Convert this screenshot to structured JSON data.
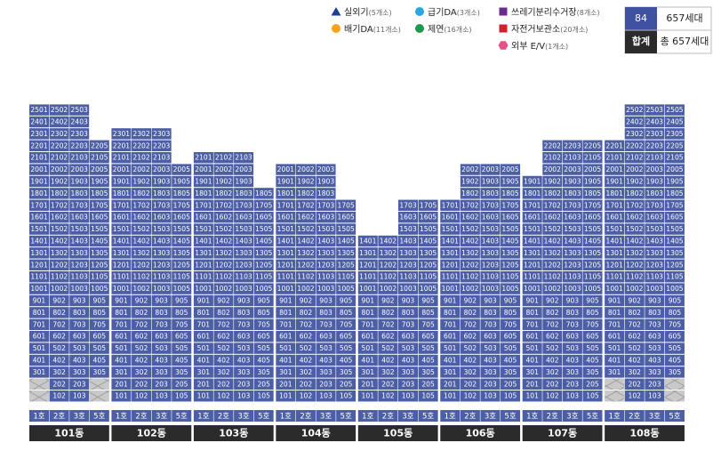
{
  "legend": [
    {
      "name": "실외기",
      "count": "(5개소)",
      "shape": "triangle",
      "color": "#1f3f8f"
    },
    {
      "name": "급기DA",
      "count": "(3개소)",
      "shape": "circle",
      "color": "#29a8e0"
    },
    {
      "name": "쓰레기분리수거장",
      "count": "(8개소)",
      "shape": "square",
      "color": "#6a2c8c"
    },
    {
      "name": "배기DA",
      "count": "(11개소)",
      "shape": "circle",
      "color": "#f5a31a"
    },
    {
      "name": "제연",
      "count": "(16개소)",
      "shape": "circle",
      "color": "#1a9a4a"
    },
    {
      "name": "자전거보관소",
      "count": "(20개소)",
      "shape": "square",
      "color": "#d0202e"
    },
    {
      "name": "외부 E/V",
      "count": "(1개소)",
      "shape": "hexagon",
      "color": "#e8508a"
    }
  ],
  "summary": {
    "rows": [
      [
        "84",
        "657세대"
      ],
      [
        "합계",
        "총 657세대"
      ]
    ]
  },
  "buildings": [
    {
      "name": "101동",
      "ho": [
        "1호",
        "2호",
        "3호",
        "5호"
      ],
      "rows": [
        [
          2501,
          2502,
          2503,
          null
        ],
        [
          2401,
          2402,
          2403,
          null
        ],
        [
          2301,
          2302,
          2303,
          null
        ],
        [
          2201,
          2202,
          2203,
          2205
        ],
        [
          2101,
          2102,
          2103,
          2105
        ],
        [
          2001,
          2002,
          2003,
          2005
        ],
        [
          1901,
          1902,
          1903,
          1905
        ],
        [
          1801,
          1802,
          1803,
          1805
        ],
        [
          1701,
          1702,
          1703,
          1705
        ],
        [
          1601,
          1602,
          1603,
          1605
        ],
        [
          1501,
          1502,
          1503,
          1505
        ],
        [
          1401,
          1402,
          1403,
          1405
        ],
        [
          1301,
          1302,
          1303,
          1305
        ],
        [
          1201,
          1202,
          1203,
          1205
        ],
        [
          1101,
          1102,
          1103,
          1105
        ],
        [
          1001,
          1002,
          1003,
          1005
        ],
        [
          901,
          902,
          903,
          905
        ],
        [
          801,
          802,
          803,
          805
        ],
        [
          701,
          702,
          703,
          705
        ],
        [
          601,
          602,
          603,
          605
        ],
        [
          501,
          502,
          503,
          505
        ],
        [
          401,
          402,
          403,
          405
        ],
        [
          301,
          302,
          303,
          305
        ],
        [
          null,
          202,
          203,
          null
        ],
        [
          null,
          102,
          103,
          null
        ]
      ]
    },
    {
      "name": "102동",
      "ho": [
        "1호",
        "2호",
        "3호",
        "5호"
      ],
      "rows": [
        [
          2301,
          2302,
          2303,
          null
        ],
        [
          2201,
          2202,
          2203,
          null
        ],
        [
          2101,
          2102,
          2103,
          null
        ],
        [
          2001,
          2002,
          2003,
          2005
        ],
        [
          1901,
          1902,
          1903,
          1905
        ],
        [
          1801,
          1802,
          1803,
          1805
        ],
        [
          1701,
          1702,
          1703,
          1705
        ],
        [
          1601,
          1602,
          1603,
          1605
        ],
        [
          1501,
          1502,
          1503,
          1505
        ],
        [
          1401,
          1402,
          1403,
          1405
        ],
        [
          1301,
          1302,
          1303,
          1305
        ],
        [
          1201,
          1202,
          1203,
          1205
        ],
        [
          1101,
          1102,
          1103,
          1105
        ],
        [
          1001,
          1002,
          1003,
          1005
        ],
        [
          901,
          902,
          903,
          905
        ],
        [
          801,
          802,
          803,
          805
        ],
        [
          701,
          702,
          703,
          705
        ],
        [
          601,
          602,
          603,
          605
        ],
        [
          501,
          502,
          503,
          505
        ],
        [
          401,
          402,
          403,
          405
        ],
        [
          301,
          302,
          303,
          305
        ],
        [
          201,
          202,
          203,
          205
        ],
        [
          101,
          102,
          103,
          105
        ]
      ]
    },
    {
      "name": "103동",
      "ho": [
        "1호",
        "2호",
        "3호",
        "5호"
      ],
      "rows": [
        [
          2101,
          2102,
          2103,
          null
        ],
        [
          2001,
          2002,
          2003,
          null
        ],
        [
          1901,
          1902,
          1903,
          null
        ],
        [
          1801,
          1802,
          1803,
          1805
        ],
        [
          1701,
          1702,
          1703,
          1705
        ],
        [
          1601,
          1602,
          1603,
          1605
        ],
        [
          1501,
          1502,
          1503,
          1505
        ],
        [
          1401,
          1402,
          1403,
          1405
        ],
        [
          1301,
          1302,
          1303,
          1305
        ],
        [
          1201,
          1202,
          1203,
          1205
        ],
        [
          1101,
          1102,
          1103,
          1105
        ],
        [
          1001,
          1002,
          1003,
          1005
        ],
        [
          901,
          902,
          903,
          905
        ],
        [
          801,
          802,
          803,
          805
        ],
        [
          701,
          702,
          703,
          705
        ],
        [
          601,
          602,
          603,
          605
        ],
        [
          501,
          502,
          503,
          505
        ],
        [
          401,
          402,
          403,
          405
        ],
        [
          301,
          302,
          303,
          305
        ],
        [
          201,
          202,
          203,
          205
        ],
        [
          101,
          102,
          103,
          105
        ]
      ]
    },
    {
      "name": "104동",
      "ho": [
        "1호",
        "2호",
        "3호",
        "5호"
      ],
      "rows": [
        [
          2001,
          2002,
          2003,
          null
        ],
        [
          1901,
          1902,
          1903,
          null
        ],
        [
          1801,
          1802,
          1803,
          null
        ],
        [
          1701,
          1702,
          1703,
          1705
        ],
        [
          1601,
          1602,
          1603,
          1605
        ],
        [
          1501,
          1502,
          1503,
          1505
        ],
        [
          1401,
          1402,
          1403,
          1405
        ],
        [
          1301,
          1302,
          1303,
          1305
        ],
        [
          1201,
          1202,
          1203,
          1205
        ],
        [
          1101,
          1102,
          1103,
          1105
        ],
        [
          1001,
          1002,
          1003,
          1005
        ],
        [
          901,
          902,
          903,
          905
        ],
        [
          801,
          802,
          803,
          805
        ],
        [
          701,
          702,
          703,
          705
        ],
        [
          601,
          602,
          603,
          605
        ],
        [
          501,
          502,
          503,
          505
        ],
        [
          401,
          402,
          403,
          405
        ],
        [
          301,
          302,
          303,
          305
        ],
        [
          201,
          202,
          203,
          205
        ],
        [
          101,
          102,
          103,
          105
        ]
      ]
    },
    {
      "name": "105동",
      "ho": [
        "1호",
        "2호",
        "3호",
        "5호"
      ],
      "rows": [
        [
          null,
          null,
          1703,
          1705
        ],
        [
          null,
          null,
          1603,
          1605
        ],
        [
          null,
          null,
          1503,
          1505
        ],
        [
          1401,
          1402,
          1403,
          1405
        ],
        [
          1301,
          1302,
          1303,
          1305
        ],
        [
          1201,
          1202,
          1203,
          1205
        ],
        [
          1101,
          1102,
          1103,
          1105
        ],
        [
          1001,
          1002,
          1003,
          1005
        ],
        [
          901,
          902,
          903,
          905
        ],
        [
          801,
          802,
          803,
          805
        ],
        [
          701,
          702,
          703,
          705
        ],
        [
          601,
          602,
          603,
          605
        ],
        [
          501,
          502,
          503,
          505
        ],
        [
          401,
          402,
          403,
          405
        ],
        [
          301,
          302,
          303,
          305
        ],
        [
          201,
          202,
          203,
          205
        ],
        [
          101,
          102,
          103,
          105
        ]
      ]
    },
    {
      "name": "106동",
      "ho": [
        "1호",
        "2호",
        "3호",
        "5호"
      ],
      "rows": [
        [
          null,
          2002,
          2003,
          2005
        ],
        [
          null,
          1902,
          1903,
          1905
        ],
        [
          null,
          1802,
          1803,
          1805
        ],
        [
          1701,
          1702,
          1703,
          1705
        ],
        [
          1601,
          1602,
          1603,
          1605
        ],
        [
          1501,
          1502,
          1503,
          1505
        ],
        [
          1401,
          1402,
          1403,
          1405
        ],
        [
          1301,
          1302,
          1303,
          1305
        ],
        [
          1201,
          1202,
          1203,
          1205
        ],
        [
          1101,
          1102,
          1103,
          1105
        ],
        [
          1001,
          1002,
          1003,
          1005
        ],
        [
          901,
          902,
          903,
          905
        ],
        [
          801,
          802,
          803,
          805
        ],
        [
          701,
          702,
          703,
          705
        ],
        [
          601,
          602,
          603,
          605
        ],
        [
          501,
          502,
          503,
          505
        ],
        [
          401,
          402,
          403,
          405
        ],
        [
          301,
          302,
          303,
          305
        ],
        [
          201,
          202,
          203,
          205
        ],
        [
          101,
          102,
          103,
          105
        ]
      ]
    },
    {
      "name": "107동",
      "ho": [
        "1호",
        "2호",
        "3호",
        "5호"
      ],
      "rows": [
        [
          null,
          2202,
          2203,
          2205
        ],
        [
          null,
          2102,
          2103,
          2105
        ],
        [
          null,
          2002,
          2003,
          2005
        ],
        [
          1901,
          1902,
          1903,
          1905
        ],
        [
          1801,
          1802,
          1803,
          1805
        ],
        [
          1701,
          1702,
          1703,
          1705
        ],
        [
          1601,
          1602,
          1603,
          1605
        ],
        [
          1501,
          1502,
          1503,
          1505
        ],
        [
          1401,
          1402,
          1403,
          1405
        ],
        [
          1301,
          1302,
          1303,
          1305
        ],
        [
          1201,
          1202,
          1203,
          1205
        ],
        [
          1101,
          1102,
          1103,
          1105
        ],
        [
          1001,
          1002,
          1003,
          1005
        ],
        [
          901,
          902,
          903,
          905
        ],
        [
          801,
          802,
          803,
          805
        ],
        [
          701,
          702,
          703,
          705
        ],
        [
          601,
          602,
          603,
          605
        ],
        [
          501,
          502,
          503,
          505
        ],
        [
          401,
          402,
          403,
          405
        ],
        [
          301,
          302,
          303,
          305
        ],
        [
          201,
          202,
          203,
          205
        ],
        [
          101,
          102,
          103,
          105
        ]
      ]
    },
    {
      "name": "108동",
      "ho": [
        "1호",
        "2호",
        "3호",
        "5호"
      ],
      "rows": [
        [
          null,
          2502,
          2503,
          2505
        ],
        [
          null,
          2402,
          2403,
          2405
        ],
        [
          null,
          2302,
          2303,
          2305
        ],
        [
          2201,
          2202,
          2203,
          2205
        ],
        [
          2101,
          2102,
          2103,
          2105
        ],
        [
          2001,
          2002,
          2003,
          2005
        ],
        [
          1901,
          1902,
          1903,
          1905
        ],
        [
          1801,
          1802,
          1803,
          1805
        ],
        [
          1701,
          1702,
          1703,
          1705
        ],
        [
          1601,
          1602,
          1603,
          1605
        ],
        [
          1501,
          1502,
          1503,
          1505
        ],
        [
          1401,
          1402,
          1403,
          1405
        ],
        [
          1301,
          1302,
          1303,
          1305
        ],
        [
          1201,
          1202,
          1203,
          1205
        ],
        [
          1101,
          1102,
          1103,
          1105
        ],
        [
          1001,
          1002,
          1003,
          1005
        ],
        [
          901,
          902,
          903,
          905
        ],
        [
          801,
          802,
          803,
          805
        ],
        [
          701,
          702,
          703,
          705
        ],
        [
          601,
          602,
          603,
          605
        ],
        [
          501,
          502,
          503,
          505
        ],
        [
          401,
          402,
          403,
          405
        ],
        [
          301,
          302,
          303,
          305
        ],
        [
          null,
          202,
          203,
          null
        ],
        [
          null,
          102,
          103,
          null
        ]
      ]
    }
  ]
}
